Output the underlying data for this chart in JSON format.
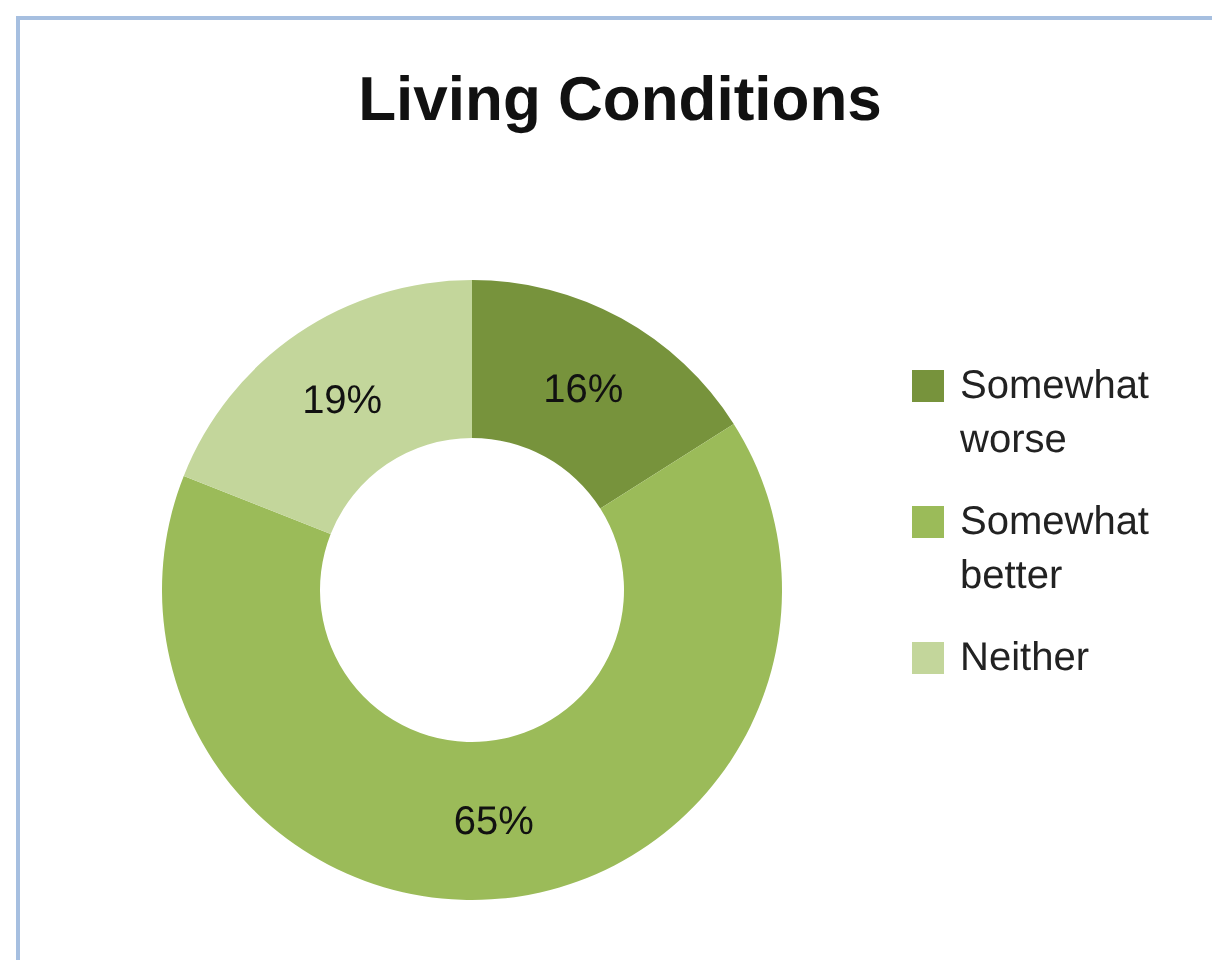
{
  "chart_data": {
    "type": "donut",
    "title": "Living Conditions",
    "categories": [
      "Somewhat worse",
      "Somewhat better",
      "Neither"
    ],
    "values": [
      16,
      65,
      19
    ],
    "colors": [
      "#77933c",
      "#9bbb59",
      "#c3d69b"
    ],
    "value_labels": [
      "16%",
      "65%",
      "19%"
    ],
    "legend": "right"
  }
}
